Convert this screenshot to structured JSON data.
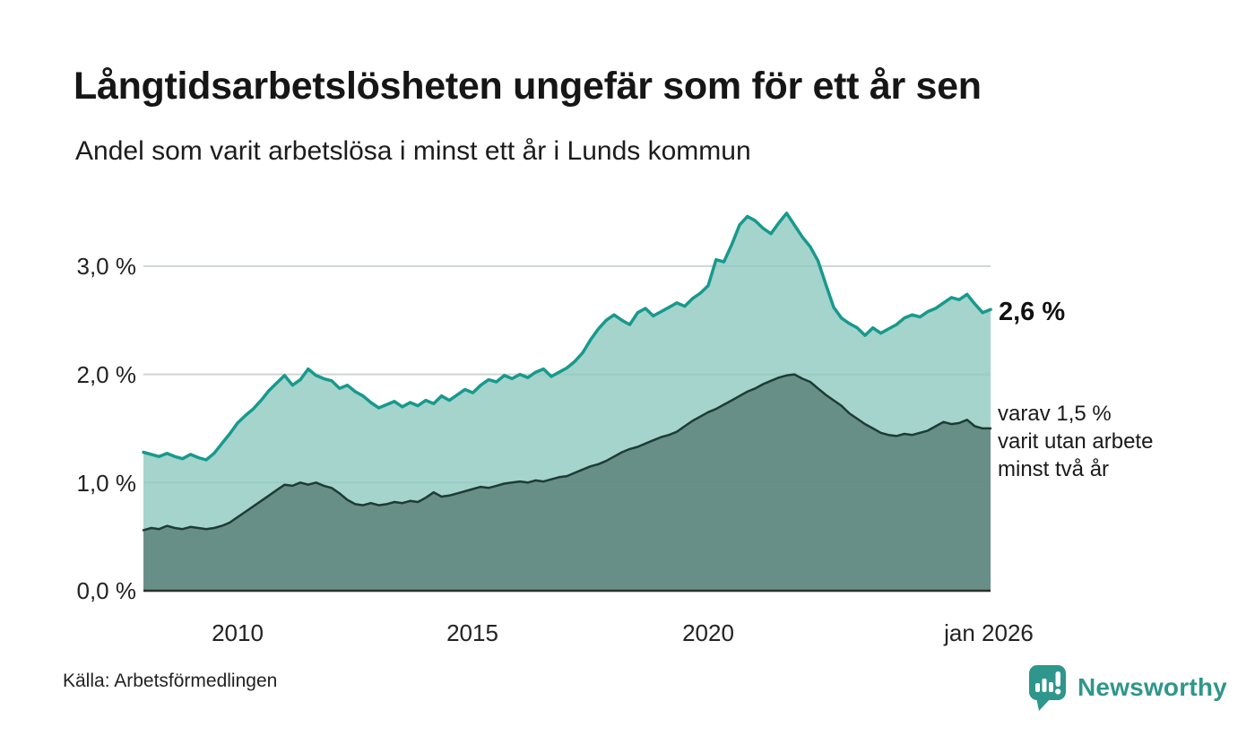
{
  "header": {
    "title": "Långtidsarbetslösheten ungefär som för ett år sen",
    "subtitle": "Andel som varit arbetslösa i minst ett år i Lunds kommun"
  },
  "footer": {
    "source": "Källa: Arbetsförmedlingen",
    "brand": "Newsworthy",
    "brand_icon": "newsworthy-speech-bubble-bar-chart-icon",
    "brand_color": "#2f968c"
  },
  "colors": {
    "total_line": "#18998d",
    "total_fill": "rgba(141,201,191,0.8)",
    "subset_line": "#1e3b35",
    "subset_fill": "rgba(96,133,125,0.88)",
    "gridline": "#d0d4d3",
    "axis_line": "#2e2e2e",
    "text": "#222222"
  },
  "chart_data": {
    "type": "area",
    "title": "Långtidsarbetslösheten ungefär som för ett år sen",
    "subtitle": "Andel som varit arbetslösa i minst ett år i Lunds kommun",
    "unit": "%",
    "x_domain": [
      2008,
      2026
    ],
    "x_step_years": 0.16667,
    "ylim": [
      0,
      3.6
    ],
    "grid": true,
    "legend_position": "right-annotations",
    "x_ticks": [
      {
        "value": 2010,
        "label": "2010"
      },
      {
        "value": 2015,
        "label": "2015"
      },
      {
        "value": 2020,
        "label": "2020"
      },
      {
        "value": 2026,
        "label": "jan 2026"
      }
    ],
    "y_ticks": [
      {
        "value": 0.0,
        "label": "0,0 %"
      },
      {
        "value": 1.0,
        "label": "1,0 %"
      },
      {
        "value": 2.0,
        "label": "2,0 %"
      },
      {
        "value": 3.0,
        "label": "3,0 %"
      }
    ],
    "series": [
      {
        "name": "Arbetslösa minst ett år",
        "line_color": "#18998d",
        "fill_color": "rgba(141,201,191,0.8)",
        "line_width": 3.5,
        "end_value": 2.6,
        "values": [
          1.28,
          1.26,
          1.24,
          1.27,
          1.24,
          1.22,
          1.26,
          1.23,
          1.21,
          1.27,
          1.36,
          1.45,
          1.55,
          1.62,
          1.68,
          1.76,
          1.85,
          1.92,
          1.99,
          1.9,
          1.95,
          2.05,
          1.99,
          1.96,
          1.94,
          1.87,
          1.9,
          1.84,
          1.8,
          1.74,
          1.69,
          1.72,
          1.75,
          1.7,
          1.74,
          1.71,
          1.76,
          1.73,
          1.8,
          1.76,
          1.81,
          1.86,
          1.83,
          1.9,
          1.95,
          1.93,
          1.99,
          1.96,
          2.0,
          1.97,
          2.02,
          2.05,
          1.98,
          2.02,
          2.06,
          2.12,
          2.2,
          2.32,
          2.42,
          2.5,
          2.55,
          2.5,
          2.46,
          2.57,
          2.61,
          2.54,
          2.58,
          2.62,
          2.66,
          2.63,
          2.7,
          2.75,
          2.82,
          3.06,
          3.04,
          3.2,
          3.38,
          3.46,
          3.42,
          3.35,
          3.3,
          3.4,
          3.49,
          3.38,
          3.27,
          3.18,
          3.05,
          2.83,
          2.62,
          2.52,
          2.47,
          2.43,
          2.36,
          2.43,
          2.38,
          2.42,
          2.46,
          2.52,
          2.55,
          2.53,
          2.58,
          2.61,
          2.66,
          2.71,
          2.69,
          2.74,
          2.65,
          2.57,
          2.6
        ]
      },
      {
        "name": "Arbetslösa minst två år",
        "line_color": "#1e3b35",
        "fill_color": "rgba(96,133,125,0.88)",
        "line_width": 2.5,
        "end_value": 1.5,
        "values": [
          0.56,
          0.58,
          0.57,
          0.6,
          0.58,
          0.57,
          0.59,
          0.58,
          0.57,
          0.58,
          0.6,
          0.63,
          0.68,
          0.73,
          0.78,
          0.83,
          0.88,
          0.93,
          0.98,
          0.97,
          1.0,
          0.98,
          1.0,
          0.97,
          0.95,
          0.9,
          0.84,
          0.8,
          0.79,
          0.81,
          0.79,
          0.8,
          0.82,
          0.81,
          0.83,
          0.82,
          0.86,
          0.91,
          0.87,
          0.88,
          0.9,
          0.92,
          0.94,
          0.96,
          0.95,
          0.97,
          0.99,
          1.0,
          1.01,
          1.0,
          1.02,
          1.01,
          1.03,
          1.05,
          1.06,
          1.09,
          1.12,
          1.15,
          1.17,
          1.2,
          1.24,
          1.28,
          1.31,
          1.33,
          1.36,
          1.39,
          1.42,
          1.44,
          1.47,
          1.52,
          1.57,
          1.61,
          1.65,
          1.68,
          1.72,
          1.76,
          1.8,
          1.84,
          1.87,
          1.91,
          1.94,
          1.97,
          1.99,
          2.0,
          1.96,
          1.93,
          1.87,
          1.81,
          1.76,
          1.71,
          1.64,
          1.59,
          1.54,
          1.5,
          1.46,
          1.44,
          1.43,
          1.45,
          1.44,
          1.46,
          1.48,
          1.52,
          1.56,
          1.54,
          1.55,
          1.58,
          1.52,
          1.5,
          1.5
        ]
      }
    ],
    "annotations": {
      "total_end_label": "2,6 %",
      "subset_label_lines": [
        "varav 1,5 %",
        "varit utan arbete",
        "minst två år"
      ]
    }
  }
}
